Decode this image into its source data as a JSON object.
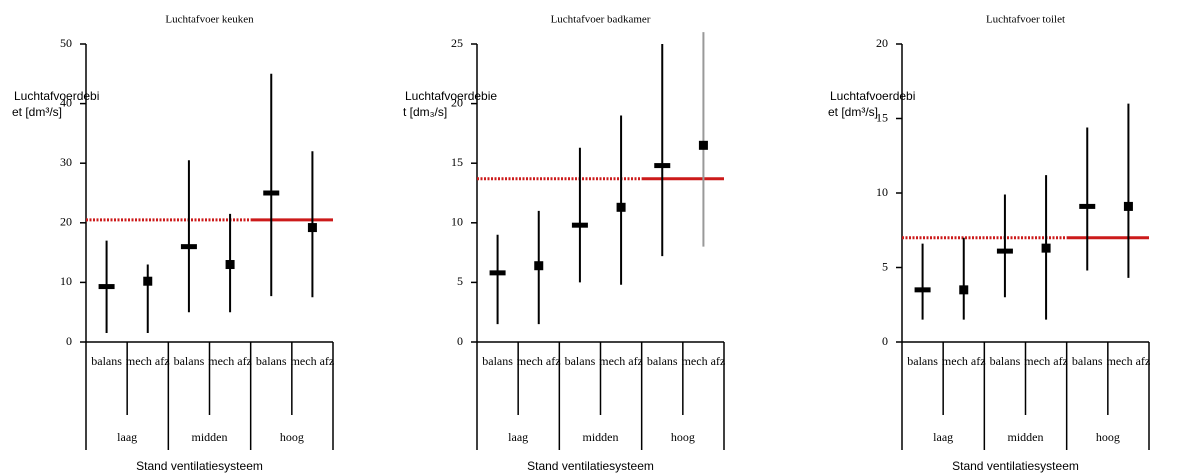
{
  "chart_data": [
    {
      "type": "errorbar",
      "title": "Luchtafvoer keuken",
      "y_label": [
        "Luchtafvoerdebi",
        "et [dm³/s]"
      ],
      "x_label": "Stand ventilatiesysteem",
      "groups": [
        "laag",
        "midden",
        "hoog"
      ],
      "categories": [
        "balans",
        "mech afz",
        "balans",
        "mech afz",
        "balans",
        "mech afz"
      ],
      "values": [
        9.3,
        10.2,
        16,
        13,
        25,
        19.2
      ],
      "lows": [
        1.5,
        1.5,
        5,
        5,
        7.7,
        7.5
      ],
      "highs": [
        17,
        13,
        30.5,
        21.5,
        45,
        32
      ],
      "reference": 20.5,
      "reference_color": "#cc1a1a",
      "color": "#000000",
      "ylim": [
        0,
        50
      ],
      "yticks": [
        0,
        10,
        20,
        30,
        40,
        50
      ]
    },
    {
      "type": "errorbar",
      "title": "Luchtafvoer badkamer",
      "y_label": [
        "Luchtafvoerdebie",
        "t [dm₃/s]"
      ],
      "x_label": "Stand ventilatiesysteem",
      "groups": [
        "laag",
        "midden",
        "hoog"
      ],
      "categories": [
        "balans",
        "mech afz",
        "balans",
        "mech afz",
        "balans",
        "mech afz"
      ],
      "values": [
        5.8,
        6.4,
        9.8,
        11.3,
        14.8,
        16.5
      ],
      "lows": [
        1.5,
        1.5,
        5,
        4.8,
        7.2,
        8
      ],
      "highs": [
        9,
        11,
        16.3,
        19,
        25,
        26
      ],
      "reference": 13.7,
      "reference_color": "#cc1a1a",
      "color": "#000000",
      "ylim": [
        0,
        25
      ],
      "yticks": [
        0,
        5,
        10,
        15,
        20,
        25
      ]
    },
    {
      "type": "errorbar",
      "title": "Luchtafvoer toilet",
      "y_label": [
        "Luchtafvoerdebi",
        "et [dm³/s]"
      ],
      "x_label": "Stand ventilatiesysteem",
      "groups": [
        "laag",
        "midden",
        "hoog"
      ],
      "categories": [
        "balans",
        "mech afz",
        "balans",
        "mech afz",
        "balans",
        "mech afz"
      ],
      "values": [
        3.5,
        3.5,
        6.1,
        6.3,
        9.1,
        9.1
      ],
      "lows": [
        1.5,
        1.5,
        3,
        1.5,
        4.8,
        4.3
      ],
      "highs": [
        6.6,
        7,
        9.9,
        11.2,
        14.4,
        16
      ],
      "reference": 7,
      "reference_color": "#cc1a1a",
      "color": "#000000",
      "ylim": [
        0,
        20
      ],
      "yticks": [
        0,
        5,
        10,
        15,
        20
      ]
    }
  ]
}
